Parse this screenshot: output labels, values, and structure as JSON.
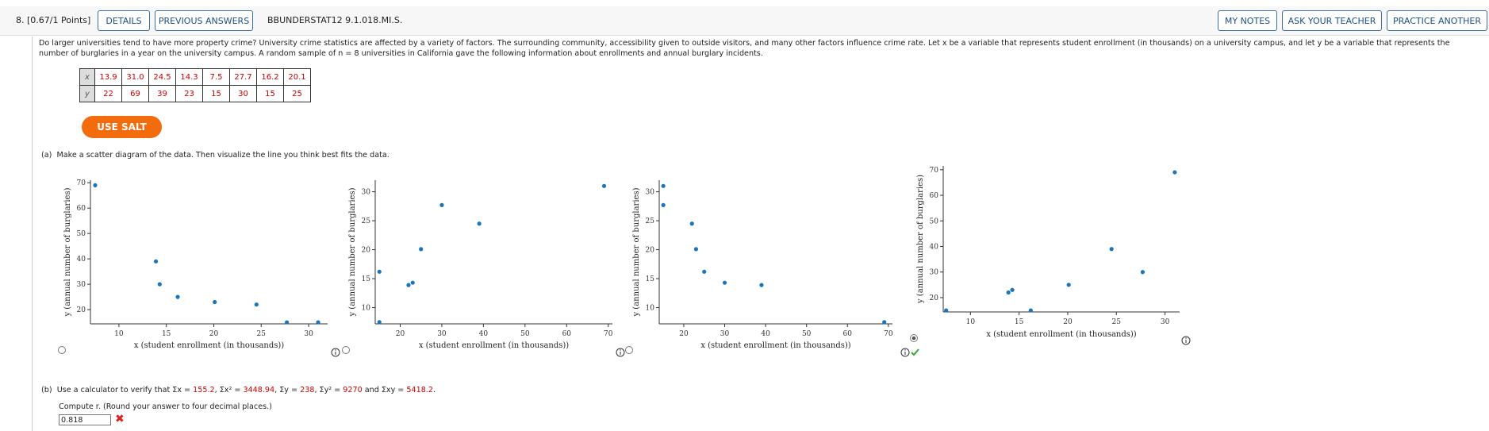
{
  "header": {
    "question_number": "8. [0.67/1 Points]",
    "left_buttons": [
      "DETAILS",
      "PREVIOUS ANSWERS"
    ],
    "course": "BBUNDERSTAT12 9.1.018.MI.S.",
    "right_buttons": [
      "MY NOTES",
      "ASK YOUR TEACHER",
      "PRACTICE ANOTHER"
    ]
  },
  "question": "Do larger universities tend to have more property crime? University crime statistics are affected by a variety of factors. The surrounding community, accessibility given to outside visitors, and many other factors influence crime rate. Let x be a variable that represents student enrollment (in thousands) on a university campus, and let y be a variable that represents the number of burglaries in a year on the university campus. A random sample of n = 8 universities in California gave the following information about enrollments and annual burglary incidents.",
  "table": {
    "rows": [
      [
        "x",
        "13.9",
        "31.0",
        "24.5",
        "14.3",
        "7.5",
        "27.7",
        "16.2",
        "20.1"
      ],
      [
        "y",
        "22",
        "69",
        "39",
        "23",
        "15",
        "30",
        "15",
        "25"
      ]
    ]
  },
  "salt_button": "USE SALT",
  "part_a": {
    "label": "(a)",
    "text": "Make a scatter diagram of the data. Then visualize the line you think best fits the data."
  },
  "chart_data": [
    {
      "type": "scatter",
      "x_label": "x (student enrollment (in thousands))",
      "y_label": "y (annual number of burglaries)",
      "x": [
        7.5,
        13.9,
        14.3,
        16.2,
        20.1,
        24.5,
        27.7,
        31.0
      ],
      "y": [
        69,
        39,
        30,
        25,
        23,
        22,
        15,
        15
      ],
      "xlim": [
        7,
        32
      ],
      "ylim": [
        14.4,
        71
      ],
      "xticks": [
        10,
        15,
        20,
        25,
        30
      ],
      "yticks": [
        20,
        30,
        40,
        50,
        60,
        70
      ],
      "color": "#1a75bb",
      "selected": false
    },
    {
      "type": "scatter",
      "x_label": "x (student enrollment (in thousands))",
      "y_label": "y (annual number of burglaries)",
      "x": [
        15,
        15,
        22,
        23,
        25,
        30,
        39,
        69
      ],
      "y": [
        16.2,
        7.5,
        13.9,
        14.3,
        20.1,
        27.7,
        24.5,
        31.0
      ],
      "xlim": [
        14,
        71
      ],
      "ylim": [
        7.2,
        32
      ],
      "xticks": [
        20,
        30,
        40,
        50,
        60,
        70
      ],
      "yticks": [
        10,
        15,
        20,
        25,
        30
      ],
      "color": "#1a75bb",
      "selected": false
    },
    {
      "type": "scatter",
      "x_label": "x (student enrollment (in thousands))",
      "y_label": "y (annual number of burglaries)",
      "x": [
        15,
        15,
        22,
        23,
        25,
        30,
        39,
        69
      ],
      "y": [
        31.0,
        27.7,
        24.5,
        20.1,
        16.2,
        14.3,
        13.9,
        7.5
      ],
      "xlim": [
        14,
        71
      ],
      "ylim": [
        7.2,
        32
      ],
      "xticks": [
        20,
        30,
        40,
        50,
        60,
        70
      ],
      "yticks": [
        10,
        15,
        20,
        25,
        30
      ],
      "color": "#1a75bb",
      "selected": false
    },
    {
      "type": "scatter",
      "x_label": "x (student enrollment (in thousands))",
      "y_label": "y (annual number of burglaries)",
      "x": [
        7.5,
        13.9,
        14.3,
        16.2,
        20.1,
        24.5,
        27.7,
        31.0
      ],
      "y": [
        15,
        22,
        23,
        15,
        25,
        39,
        30,
        69
      ],
      "xlim": [
        7.2,
        31.5
      ],
      "ylim": [
        14.4,
        71.5
      ],
      "xticks": [
        10,
        15,
        20,
        25,
        30
      ],
      "yticks": [
        20,
        30,
        40,
        50,
        60,
        70
      ],
      "color": "#1a75bb",
      "selected": true
    }
  ],
  "part_b": {
    "label": "(b)",
    "segments": [
      {
        "text": "Use a calculator to verify that Σx = "
      },
      {
        "text": "155.2",
        "highlight": true
      },
      {
        "text": ", Σx² = "
      },
      {
        "text": "3448.94",
        "highlight": true
      },
      {
        "text": ", Σy = "
      },
      {
        "text": "238",
        "highlight": true
      },
      {
        "text": ", Σy² = "
      },
      {
        "text": "9270",
        "highlight": true
      },
      {
        "text": " and Σxy = "
      },
      {
        "text": "5418.2",
        "highlight": true
      },
      {
        "text": "."
      }
    ],
    "prompt": "Compute r. (Round your answer to four decimal places.)",
    "answer": "0.818"
  }
}
